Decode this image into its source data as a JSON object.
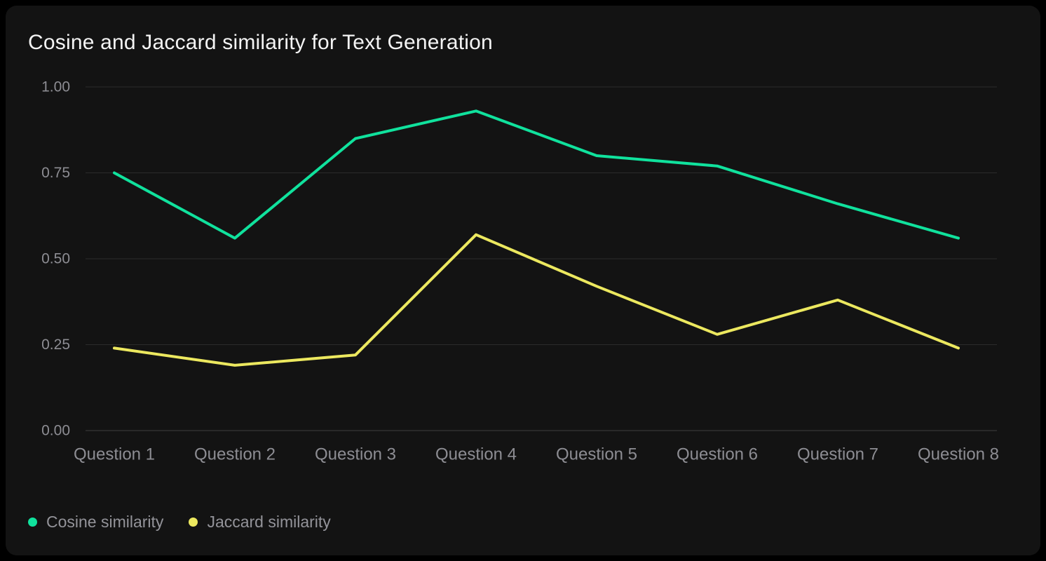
{
  "chart": {
    "title": "Cosine and Jaccard similarity for Text Generation"
  },
  "chart_data": {
    "type": "line",
    "title": "Cosine and Jaccard similarity for Text Generation",
    "categories": [
      "Question 1",
      "Question 2",
      "Question 3",
      "Question 4",
      "Question 5",
      "Question 6",
      "Question 7",
      "Question 8"
    ],
    "series": [
      {
        "name": "Cosine similarity",
        "color": "#10e29d",
        "values": [
          0.75,
          0.56,
          0.85,
          0.93,
          0.8,
          0.77,
          0.66,
          0.56
        ]
      },
      {
        "name": "Jaccard similarity",
        "color": "#ece85f",
        "values": [
          0.24,
          0.19,
          0.22,
          0.57,
          0.42,
          0.28,
          0.38,
          0.24
        ]
      }
    ],
    "xlabel": "",
    "ylabel": "",
    "ylim": [
      0,
      1
    ],
    "yticks": [
      {
        "label": "1.00",
        "value": 1.0
      },
      {
        "label": "0.75",
        "value": 0.75
      },
      {
        "label": "0.50",
        "value": 0.5
      },
      {
        "label": "0.25",
        "value": 0.25
      },
      {
        "label": "0.00",
        "value": 0.0
      }
    ],
    "grid": "horizontal",
    "legend_position": "bottom-left"
  },
  "colors": {
    "page_background": "#000000",
    "panel_background": "#131313",
    "title_text": "#f4f4f4",
    "gridline": "#2b2b2b",
    "baseline": "#3f3f3f",
    "tick_text": "#8d8d93",
    "legend_text": "#939399"
  }
}
